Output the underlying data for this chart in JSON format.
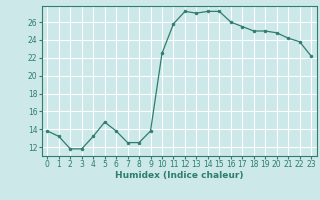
{
  "x": [
    0,
    1,
    2,
    3,
    4,
    5,
    6,
    7,
    8,
    9,
    10,
    11,
    12,
    13,
    14,
    15,
    16,
    17,
    18,
    19,
    20,
    21,
    22,
    23
  ],
  "y": [
    13.8,
    13.2,
    11.8,
    11.8,
    13.2,
    14.8,
    13.8,
    12.5,
    12.5,
    13.8,
    22.5,
    25.8,
    27.2,
    27.0,
    27.2,
    27.2,
    26.0,
    25.5,
    25.0,
    25.0,
    24.8,
    24.2,
    23.8,
    22.2
  ],
  "xlabel": "Humidex (Indice chaleur)",
  "xlim": [
    -0.5,
    23.5
  ],
  "ylim": [
    11,
    27.8
  ],
  "yticks": [
    12,
    14,
    16,
    18,
    20,
    22,
    24,
    26
  ],
  "xticks": [
    0,
    1,
    2,
    3,
    4,
    5,
    6,
    7,
    8,
    9,
    10,
    11,
    12,
    13,
    14,
    15,
    16,
    17,
    18,
    19,
    20,
    21,
    22,
    23
  ],
  "line_color": "#2e7d6e",
  "bg_color": "#cce8e8",
  "grid_color": "#ffffff",
  "tick_fontsize": 5.5,
  "xlabel_fontsize": 6.5
}
